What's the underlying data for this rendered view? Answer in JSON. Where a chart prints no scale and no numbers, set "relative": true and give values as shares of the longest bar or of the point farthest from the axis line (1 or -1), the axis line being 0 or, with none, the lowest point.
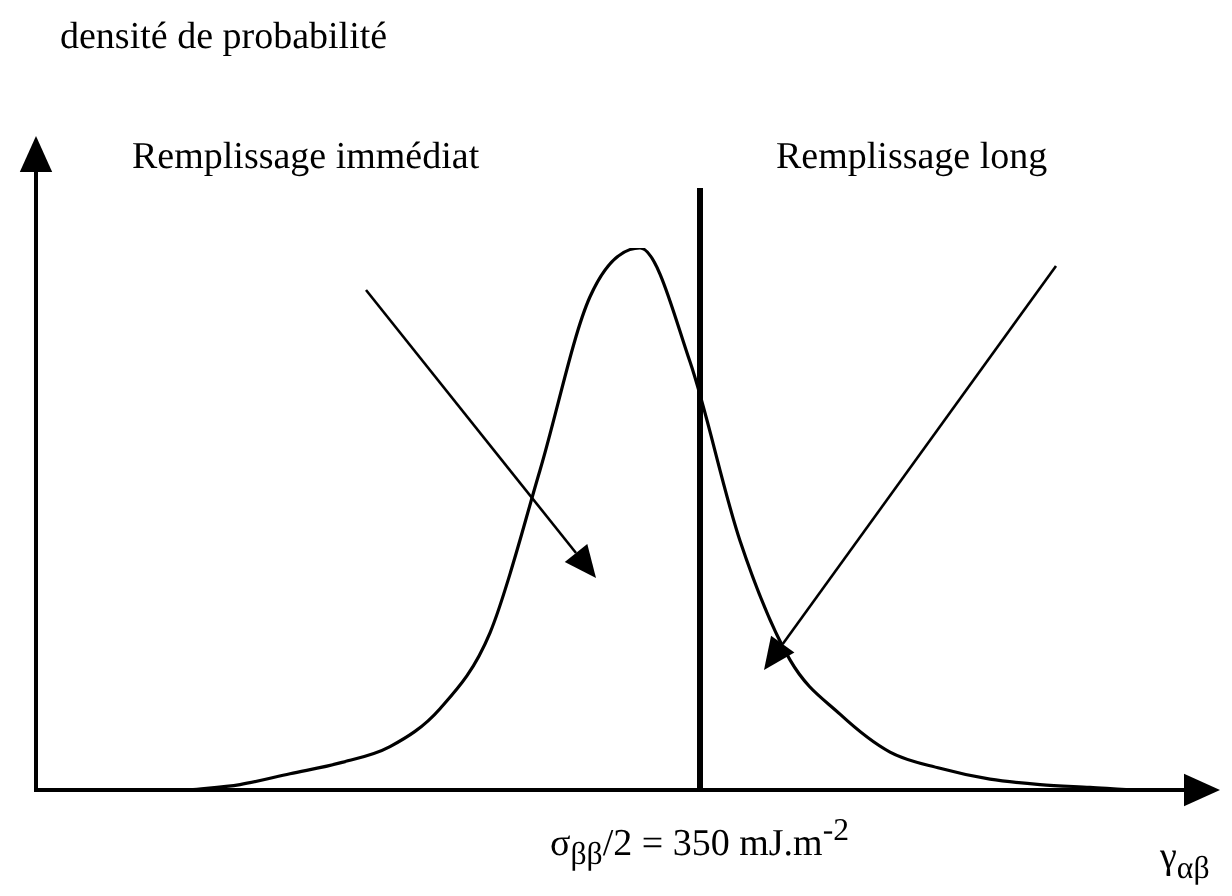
{
  "chart_data": {
    "type": "line",
    "relative": true,
    "ylabel": "densité de probabilité",
    "xlabel": "γ$_{αβ}$",
    "categories": [
      null,
      null,
      null,
      null,
      null,
      null,
      null,
      null,
      null,
      null,
      null,
      null,
      null,
      null,
      null,
      null,
      null,
      null,
      null,
      null,
      null
    ],
    "series": [
      {
        "color": "#000000",
        "values": [
          0,
          0.01,
          0.03,
          0.05,
          0.08,
          0.15,
          0.29,
          0.59,
          0.91,
          1,
          0.79,
          0.46,
          0.24,
          0.14,
          0.07,
          0.04,
          0.02,
          0.01,
          0.005,
          0,
          0
        ]
      }
    ],
    "annotations": [
      "Remplissage immédiat",
      "Remplissage long",
      "σ$_{ββ}$/2 = 350 mJ.m$^{-2}$"
    ],
    "legend": false,
    "marker": "none"
  }
}
